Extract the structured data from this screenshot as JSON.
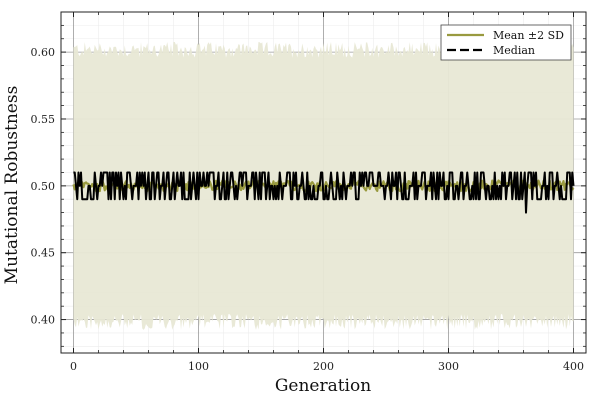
{
  "chart_data": {
    "type": "line",
    "title": "",
    "xlabel": "Generation",
    "ylabel": "Mutational Robustness",
    "xlim": [
      -10,
      410
    ],
    "ylim": [
      0.375,
      0.63
    ],
    "xticks": [
      0,
      100,
      200,
      300,
      400
    ],
    "xtick_labels": [
      "0",
      "100",
      "200",
      "300",
      "400"
    ],
    "yticks": [
      0.4,
      0.45,
      0.5,
      0.55,
      0.6
    ],
    "ytick_labels": [
      "0.40",
      "0.45",
      "0.50",
      "0.55",
      "0.60"
    ],
    "grid": true,
    "minor_grid": true,
    "legend_position": "top-right",
    "x": {
      "start": 0,
      "end": 400,
      "step": 1
    },
    "series": [
      {
        "name": "Mean ±2 SD",
        "kind": "line-with-band",
        "color": "#999a3f",
        "band_color": "#e8e8d5",
        "level": 0.5,
        "noise_amplitude": 0.004,
        "band_lower_approx": 0.4,
        "band_upper_approx": 0.6,
        "band_spike_amplitude": 0.012
      },
      {
        "name": "Median",
        "kind": "line",
        "color": "#000000",
        "level": 0.5,
        "typical_values": [
          0.49,
          0.5,
          0.51
        ],
        "min_observed": 0.48,
        "max_observed": 0.51
      }
    ]
  }
}
